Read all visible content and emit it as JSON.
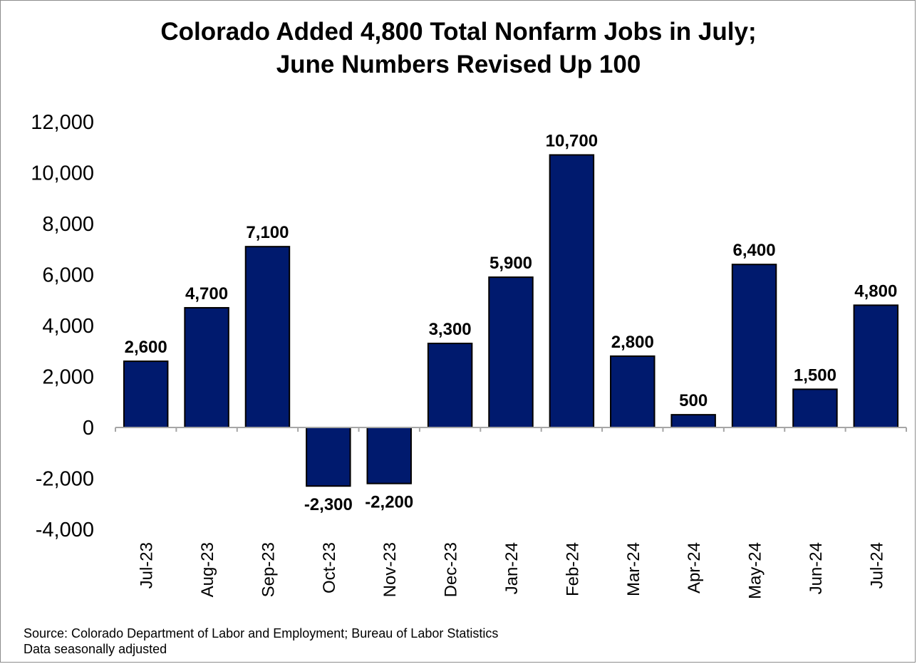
{
  "title": {
    "line1": "Colorado Added 4,800 Total Nonfarm Jobs in July;",
    "line2": "June Numbers Revised Up 100"
  },
  "source": {
    "line1": "Source: Colorado Department of Labor and Employment; Bureau of Labor Statistics",
    "line2": "Data seasonally adjusted"
  },
  "chart_data": {
    "type": "bar",
    "title": "Colorado Added 4,800 Total Nonfarm Jobs in July; June Numbers Revised Up 100",
    "xlabel": "",
    "ylabel": "",
    "categories": [
      "Jul-23",
      "Aug-23",
      "Sep-23",
      "Oct-23",
      "Nov-23",
      "Dec-23",
      "Jan-24",
      "Feb-24",
      "Mar-24",
      "Apr-24",
      "May-24",
      "Jun-24",
      "Jul-24"
    ],
    "values": [
      2600,
      4700,
      7100,
      -2300,
      -2200,
      3300,
      5900,
      10700,
      2800,
      500,
      6400,
      1500,
      4800
    ],
    "data_labels": [
      "2,600",
      "4,700",
      "7,100",
      "-2,300",
      "-2,200",
      "3,300",
      "5,900",
      "10,700",
      "2,800",
      "500",
      "6,400",
      "1,500",
      "4,800"
    ],
    "ylim": [
      -4000,
      12000
    ],
    "yticks": [
      12000,
      10000,
      8000,
      6000,
      4000,
      2000,
      0,
      -2000,
      -4000
    ],
    "ytick_labels": [
      "12,000",
      "10,000",
      "8,000",
      "6,000",
      "4,000",
      "2,000",
      "0",
      "-2,000",
      "-4,000"
    ],
    "grid": false,
    "legend": "none",
    "bar_color": "#001a6e"
  }
}
